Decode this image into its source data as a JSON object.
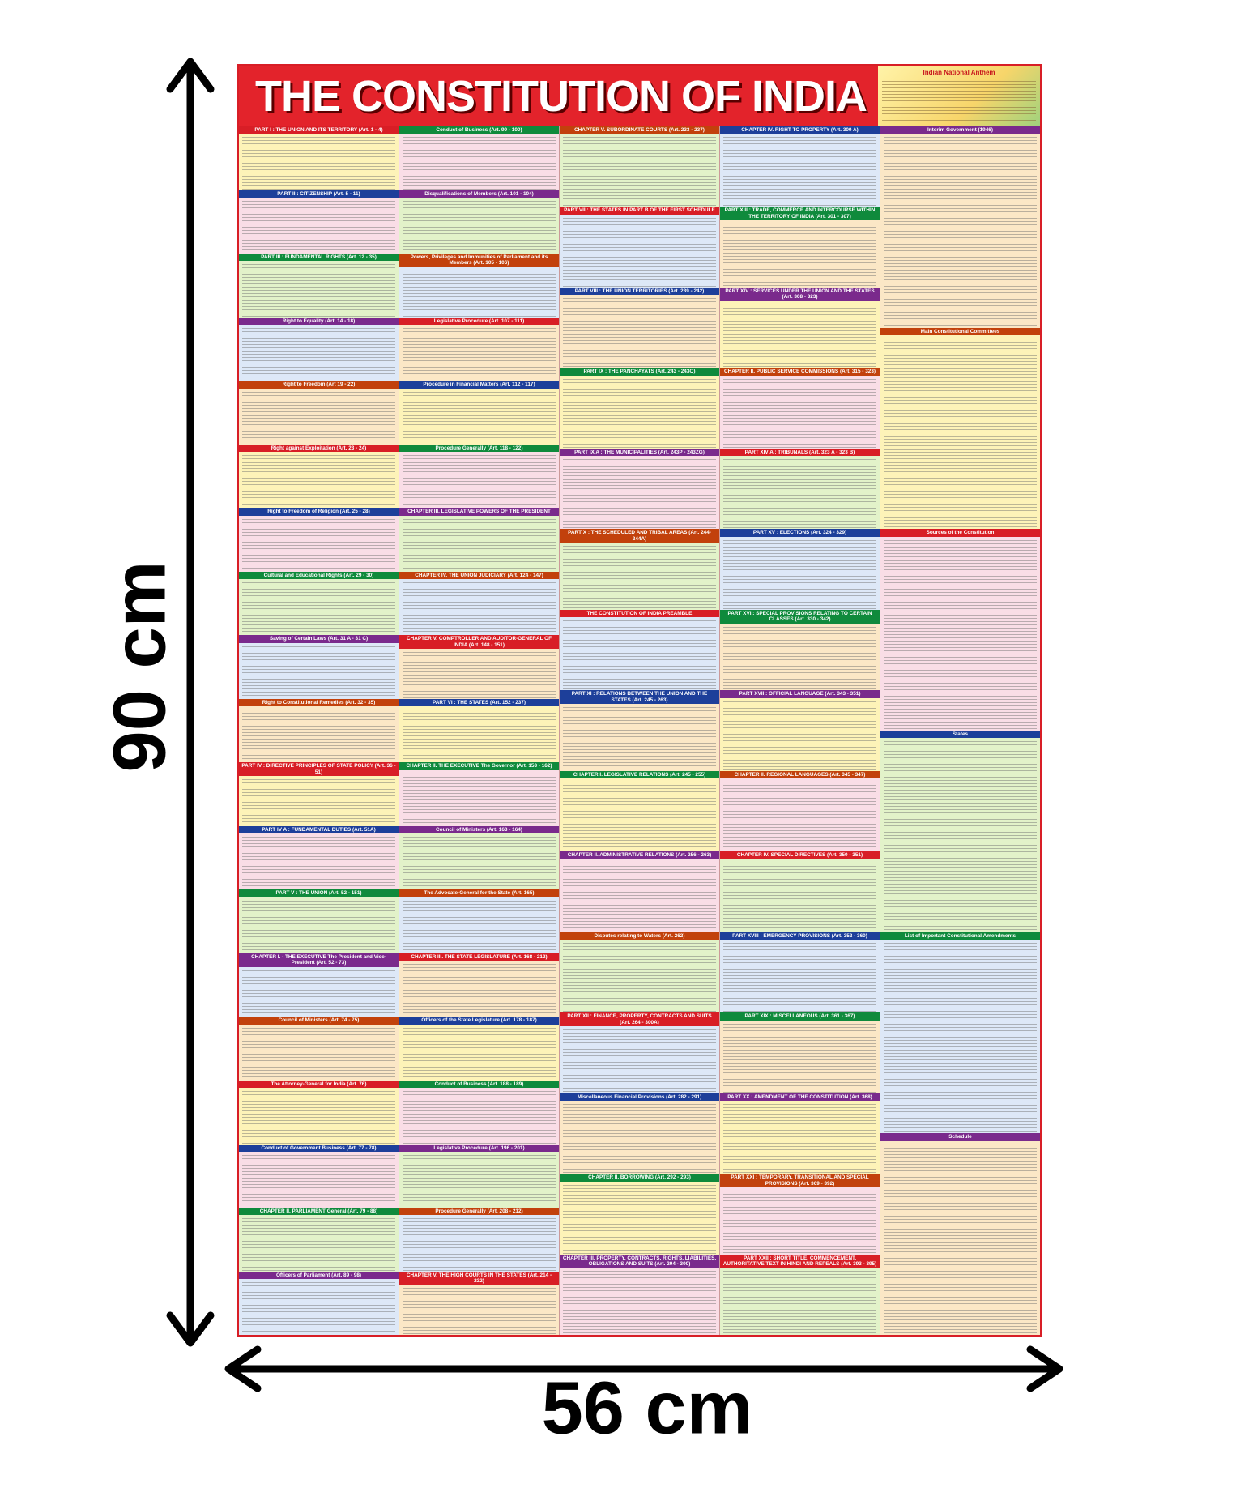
{
  "poster": {
    "title": "THE CONSTITUTION OF INDIA",
    "anthem_heading": "Indian National Anthem",
    "columns": [
      {
        "sections": [
          "PART I : THE UNION AND ITS TERRITORY (Art. 1 - 4)",
          "PART II : CITIZENSHIP (Art. 5 - 11)",
          "PART III : FUNDAMENTAL RIGHTS (Art. 12 - 35)",
          "Right to Equality (Art. 14 - 18)",
          "Right to Freedom (Art 19 - 22)",
          "Right against Exploitation (Art. 23 - 24)",
          "Right to Freedom of Religion (Art. 25 - 28)",
          "Cultural and Educational Rights (Art. 29 - 30)",
          "Saving of Certain Laws (Art. 31 A - 31 C)",
          "Right to Constitutional Remedies (Art. 32 - 35)",
          "PART IV : DIRECTIVE PRINCIPLES OF STATE POLICY (Art. 36 - 51)",
          "PART IV A : FUNDAMENTAL DUTIES (Art. 51A)",
          "PART V : THE UNION (Art. 52 - 151)",
          "CHAPTER I. - THE EXECUTIVE The President and Vice-President (Art. 52 - 73)",
          "Council of Ministers (Art. 74 - 75)",
          "The Attorney-General for India (Art. 76)",
          "Conduct of Government Business (Art. 77 - 78)",
          "CHAPTER II. PARLIAMENT General (Art. 79 - 88)",
          "Officers of Parliament (Art. 89 - 98)"
        ]
      },
      {
        "sections": [
          "Conduct of Business (Art. 99 - 100)",
          "Disqualifications of Members (Art. 101 - 104)",
          "Powers, Privileges and Immunities of Parliament and its Members (Art. 105 - 106)",
          "Legislative Procedure (Art. 107 - 111)",
          "Procedure in Financial Matters (Art. 112 - 117)",
          "Procedure Generally (Art. 118 - 122)",
          "CHAPTER III. LEGISLATIVE POWERS OF THE PRESIDENT",
          "CHAPTER IV. THE UNION JUDICIARY (Art. 124 - 147)",
          "CHAPTER V. COMPTROLLER AND AUDITOR-GENERAL OF INDIA (Art. 148 - 151)",
          "PART VI : THE STATES (Art. 152 - 237)",
          "CHAPTER II. THE EXECUTIVE The Governor (Art. 153 - 162)",
          "Council of Ministers (Art. 163 - 164)",
          "The Advocate-General for the State (Art. 165)",
          "CHAPTER III. THE STATE LEGISLATURE (Art. 168 - 212)",
          "Officers of the State Legislature (Art. 178 - 187)",
          "Conduct of Business (Art. 188 - 189)",
          "Legislative Procedure (Art. 196 - 201)",
          "Procedure Generally (Art. 208 - 212)",
          "CHAPTER V. THE HIGH COURTS IN THE STATES (Art. 214 - 232)"
        ]
      },
      {
        "sections": [
          "CHAPTER V. SUBORDINATE COURTS (Art. 233 - 237)",
          "PART VII : THE STATES IN PART B OF THE FIRST SCHEDULE",
          "PART VIII : THE UNION TERRITORIES (Art. 239 - 242)",
          "PART IX : THE PANCHAYATS (Art. 243 - 243O)",
          "PART IX A : THE MUNICIPALITIES (Art. 243P - 243ZG)",
          "PART X : THE SCHEDULED AND TRIBAL AREAS (Art. 244-244A)",
          "THE CONSTITUTION OF INDIA PREAMBLE",
          "PART XI : RELATIONS BETWEEN THE UNION AND THE STATES (Art. 245 - 263)",
          "CHAPTER I. LEGISLATIVE RELATIONS (Art. 245 - 255)",
          "CHAPTER II. ADMINISTRATIVE RELATIONS (Art. 256 - 263)",
          "Disputes relating to Waters (Art. 262)",
          "PART XII : FINANCE, PROPERTY, CONTRACTS AND SUITS (Art. 264 - 300A)",
          "Miscellaneous Financial Provisions (Art. 282 - 291)",
          "CHAPTER II. BORROWING (Art. 292 - 293)",
          "CHAPTER III. PROPERTY, CONTRACTS, RIGHTS, LIABILITIES, OBLIGATIONS AND SUITS (Art. 294 - 300)"
        ]
      },
      {
        "sections": [
          "CHAPTER IV. RIGHT TO PROPERTY (Art. 300 A)",
          "PART XIII : TRADE, COMMERCE AND INTERCOURSE WITHIN THE TERRITORY OF INDIA (Art. 301 - 307)",
          "PART XIV : SERVICES UNDER THE UNION AND THE STATES (Art. 308 - 323)",
          "CHAPTER II. PUBLIC SERVICE COMMISSIONS (Art. 315 - 323)",
          "PART XIV A : TRIBUNALS (Art. 323 A - 323 B)",
          "PART XV : ELECTIONS (Art. 324 - 329)",
          "PART XVI : SPECIAL PROVISIONS RELATING TO CERTAIN CLASSES (Art. 330 - 342)",
          "PART XVII : OFFICIAL LANGUAGE (Art. 343 - 351)",
          "CHAPTER II. REGIONAL LANGUAGES (Art. 345 - 347)",
          "CHAPTER IV. SPECIAL DIRECTIVES (Art. 350 - 351)",
          "PART XVIII : EMERGENCY PROVISIONS (Art. 352 - 360)",
          "PART XIX : MISCELLANEOUS (Art. 361 - 367)",
          "PART XX : AMENDMENT OF THE CONSTITUTION (Art. 368)",
          "PART XXI : TEMPORARY, TRANSITIONAL AND SPECIAL PROVISIONS (Art. 369 - 392)",
          "PART XXII : SHORT TITLE, COMMENCEMENT, AUTHORITATIVE TEXT IN HINDI AND REPEALS (Art. 393 - 395)"
        ]
      },
      {
        "sections": [
          "Interim Government (1946)",
          "Main Constitutional Committees",
          "Sources of the Constitution",
          "States",
          "List of Important Constitutional Amendments",
          "Schedule"
        ]
      }
    ]
  },
  "dimensions": {
    "height": "90 cm",
    "width": "56 cm"
  }
}
